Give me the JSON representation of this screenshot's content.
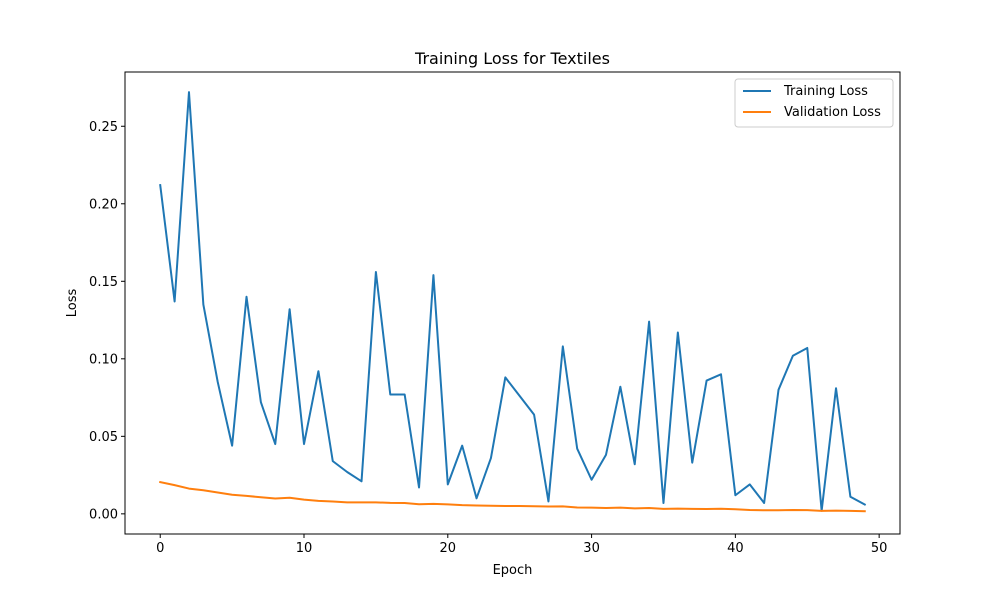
{
  "chart_data": {
    "type": "line",
    "title": "Training Loss for Textiles",
    "xlabel": "Epoch",
    "ylabel": "Loss",
    "xlim": [
      -2.45,
      51.45
    ],
    "ylim": [
      -0.013,
      0.285
    ],
    "x_ticks": [
      0,
      10,
      20,
      30,
      40,
      50
    ],
    "x_tick_labels": [
      "0",
      "10",
      "20",
      "30",
      "40",
      "50"
    ],
    "y_ticks": [
      0.0,
      0.05,
      0.1,
      0.15,
      0.2,
      0.25
    ],
    "y_tick_labels": [
      "0.00",
      "0.05",
      "0.10",
      "0.15",
      "0.20",
      "0.25"
    ],
    "grid": false,
    "legend_position": "top-right",
    "x": [
      0,
      1,
      2,
      3,
      4,
      5,
      6,
      7,
      8,
      9,
      10,
      11,
      12,
      13,
      14,
      15,
      16,
      17,
      18,
      19,
      20,
      21,
      22,
      23,
      24,
      25,
      26,
      27,
      28,
      29,
      30,
      31,
      32,
      33,
      34,
      35,
      36,
      37,
      38,
      39,
      40,
      41,
      42,
      43,
      44,
      45,
      46,
      47,
      48,
      49
    ],
    "series": [
      {
        "name": "Training Loss",
        "color": "#1f77b4",
        "values": [
          0.212,
          0.137,
          0.272,
          0.135,
          0.085,
          0.044,
          0.14,
          0.072,
          0.045,
          0.132,
          0.045,
          0.092,
          0.034,
          0.027,
          0.021,
          0.156,
          0.077,
          0.077,
          0.017,
          0.154,
          0.019,
          0.044,
          0.01,
          0.036,
          0.088,
          0.076,
          0.064,
          0.008,
          0.108,
          0.042,
          0.022,
          0.038,
          0.082,
          0.032,
          0.124,
          0.007,
          0.117,
          0.033,
          0.086,
          0.09,
          0.012,
          0.019,
          0.007,
          0.08,
          0.102,
          0.107,
          0.002,
          0.081,
          0.011,
          0.006
        ]
      },
      {
        "name": "Validation Loss",
        "color": "#ff7f0e",
        "values": [
          0.0205,
          0.0185,
          0.0163,
          0.0152,
          0.0138,
          0.0123,
          0.0116,
          0.0107,
          0.0099,
          0.0104,
          0.0092,
          0.0084,
          0.008,
          0.0074,
          0.0074,
          0.0074,
          0.0071,
          0.007,
          0.0062,
          0.0064,
          0.0061,
          0.0056,
          0.0054,
          0.0052,
          0.0051,
          0.0051,
          0.0049,
          0.0047,
          0.0048,
          0.0041,
          0.004,
          0.0038,
          0.004,
          0.0035,
          0.0038,
          0.0032,
          0.0034,
          0.0032,
          0.0031,
          0.0033,
          0.003,
          0.0025,
          0.0023,
          0.0023,
          0.0025,
          0.0024,
          0.0019,
          0.0021,
          0.0019,
          0.0017
        ]
      }
    ]
  }
}
